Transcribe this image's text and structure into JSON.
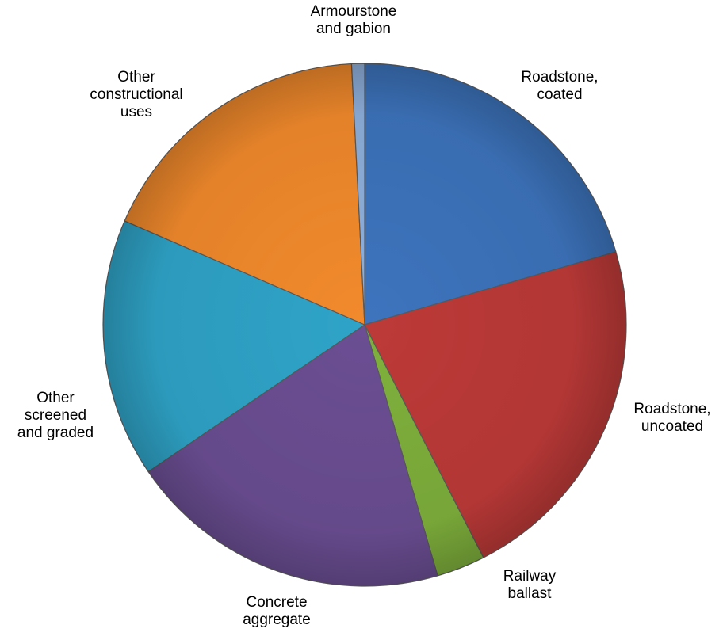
{
  "chart_data": {
    "type": "pie",
    "title": "",
    "slices": [
      {
        "label": "Roadstone, coated",
        "label_lines": [
          "Roadstone,",
          "coated"
        ],
        "value": 20.5,
        "color": "#3d74bd"
      },
      {
        "label": "Roadstone, uncoated",
        "label_lines": [
          "Roadstone,",
          "uncoated"
        ],
        "value": 22.0,
        "color": "#bd3a38"
      },
      {
        "label": "Railway ballast",
        "label_lines": [
          "Railway",
          "ballast"
        ],
        "value": 3.0,
        "color": "#7fb03c"
      },
      {
        "label": "Concrete aggregate",
        "label_lines": [
          "Concrete",
          "aggregate"
        ],
        "value": 20.0,
        "color": "#6b4e93"
      },
      {
        "label": "Other screened and graded",
        "label_lines": [
          "Other",
          "screened",
          "and graded"
        ],
        "value": 16.0,
        "color": "#2fa4c8"
      },
      {
        "label": "Other constructional uses",
        "label_lines": [
          "Other",
          "constructional",
          "uses"
        ],
        "value": 17.7,
        "color": "#f28a2c"
      },
      {
        "label": "Armourstone and gabion",
        "label_lines": [
          "Armourstone",
          "and gabion"
        ],
        "value": 0.8,
        "color": "#8fb0dc"
      }
    ],
    "legend": "none",
    "start_angle_deg": 0,
    "direction": "clockwise"
  }
}
